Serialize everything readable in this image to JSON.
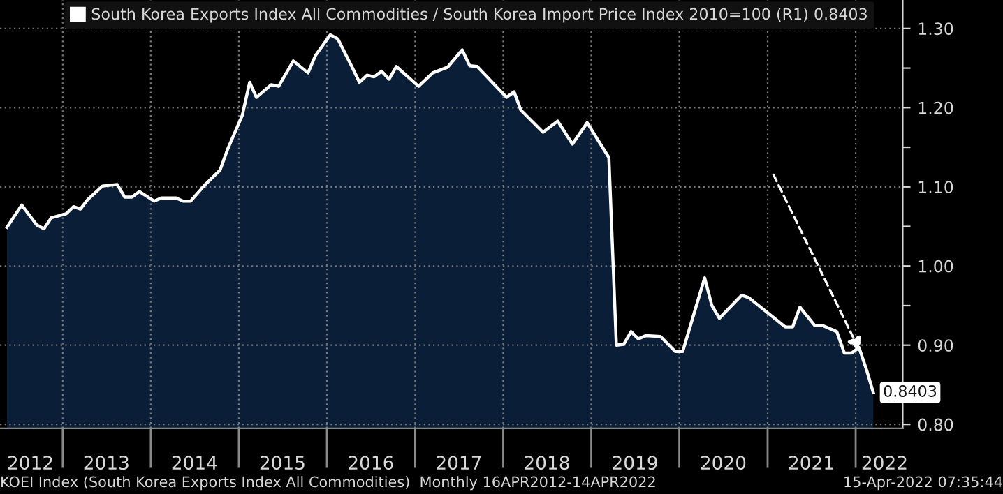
{
  "chart_data": {
    "type": "area",
    "legend": "top",
    "grid": true,
    "x": [
      "2012-05",
      "2012-07",
      "2012-09",
      "2012-10",
      "2012-11",
      "2013-01",
      "2013-02",
      "2013-03",
      "2013-04",
      "2013-06",
      "2013-08",
      "2013-09",
      "2013-10",
      "2013-11",
      "2014-01",
      "2014-02",
      "2014-04",
      "2014-05",
      "2014-06",
      "2014-08",
      "2014-10",
      "2014-11",
      "2015-01",
      "2015-02",
      "2015-03",
      "2015-05",
      "2015-06",
      "2015-08",
      "2015-10",
      "2015-11",
      "2016-01",
      "2016-02",
      "2016-04",
      "2016-05",
      "2016-06",
      "2016-07",
      "2016-08",
      "2016-09",
      "2016-10",
      "2017-01",
      "2017-03",
      "2017-05",
      "2017-07",
      "2017-08",
      "2017-09",
      "2018-01",
      "2018-02",
      "2018-03",
      "2018-06",
      "2018-08",
      "2018-10",
      "2018-12",
      "2019-03",
      "2019-04",
      "2019-05",
      "2019-06",
      "2019-07",
      "2019-08",
      "2019-10",
      "2019-12",
      "2020-01",
      "2020-04",
      "2020-05",
      "2020-06",
      "2020-09",
      "2020-10",
      "2021-03",
      "2021-04",
      "2021-05",
      "2021-07",
      "2021-08",
      "2021-10",
      "2021-11",
      "2021-12",
      "2022-01",
      "2022-02",
      "2022-03"
    ],
    "series": [
      {
        "name": "South Korea Exports Index All Commodities / South Korea Import Price Index 2010=100 (R1) 0.8403",
        "color": "#ffffff",
        "values": [
          1.049,
          1.077,
          1.052,
          1.047,
          1.061,
          1.066,
          1.075,
          1.072,
          1.084,
          1.101,
          1.103,
          1.087,
          1.087,
          1.094,
          1.082,
          1.086,
          1.086,
          1.082,
          1.082,
          1.103,
          1.121,
          1.147,
          1.19,
          1.232,
          1.213,
          1.229,
          1.227,
          1.259,
          1.244,
          1.266,
          1.292,
          1.287,
          1.251,
          1.232,
          1.241,
          1.239,
          1.246,
          1.236,
          1.252,
          1.227,
          1.244,
          1.251,
          1.273,
          1.253,
          1.252,
          1.213,
          1.22,
          1.197,
          1.169,
          1.183,
          1.154,
          1.181,
          1.137,
          0.9,
          0.901,
          0.917,
          0.908,
          0.912,
          0.911,
          0.892,
          0.892,
          0.985,
          0.95,
          0.934,
          0.963,
          0.96,
          0.923,
          0.923,
          0.948,
          0.925,
          0.925,
          0.917,
          0.89,
          0.89,
          0.897,
          0.869,
          0.8403
        ],
        "value_labels": [
          null,
          null,
          null,
          null,
          null,
          null,
          null,
          null,
          null,
          null,
          null,
          null,
          null,
          null,
          null,
          null,
          null,
          null,
          null,
          null,
          null,
          null,
          null,
          null,
          null,
          null,
          null,
          null,
          null,
          null,
          null,
          null,
          null,
          null,
          null,
          null,
          null,
          null,
          null,
          null,
          null,
          null,
          null,
          null,
          null,
          null,
          null,
          null,
          null,
          null,
          null,
          null,
          null,
          null,
          null,
          null,
          null,
          null,
          null,
          null,
          null,
          null,
          null,
          null,
          null,
          null,
          null,
          null,
          null,
          null,
          null,
          null,
          null,
          null,
          null,
          null,
          "0.8403"
        ]
      }
    ],
    "xlim": [
      "2012-04-16",
      "2022-07-15"
    ],
    "xticks": [
      {
        "value": "2012-08-20",
        "label": "2012"
      },
      {
        "value": "2013-01-01",
        "label": null
      },
      {
        "value": "2013-07-01",
        "label": "2013"
      },
      {
        "value": "2014-01-01",
        "label": null
      },
      {
        "value": "2014-07-01",
        "label": "2014"
      },
      {
        "value": "2015-01-01",
        "label": null
      },
      {
        "value": "2015-07-01",
        "label": "2015"
      },
      {
        "value": "2016-01-01",
        "label": null
      },
      {
        "value": "2016-07-01",
        "label": "2016"
      },
      {
        "value": "2017-01-01",
        "label": null
      },
      {
        "value": "2017-07-01",
        "label": "2017"
      },
      {
        "value": "2018-01-01",
        "label": null
      },
      {
        "value": "2018-07-01",
        "label": "2018"
      },
      {
        "value": "2019-01-01",
        "label": null
      },
      {
        "value": "2019-07-01",
        "label": "2019"
      },
      {
        "value": "2020-01-01",
        "label": null
      },
      {
        "value": "2020-07-01",
        "label": "2020"
      },
      {
        "value": "2021-01-01",
        "label": null
      },
      {
        "value": "2021-07-01",
        "label": "2021"
      },
      {
        "value": "2022-01-01",
        "label": null
      },
      {
        "value": "2022-05-01",
        "label": "2022"
      }
    ],
    "ylim": [
      0.795,
      1.336
    ],
    "yticks": [
      {
        "value": 0.8,
        "label": "0.80"
      },
      {
        "value": 0.85,
        "label": null
      },
      {
        "value": 0.9,
        "label": "0.90"
      },
      {
        "value": 0.95,
        "label": null
      },
      {
        "value": 1.0,
        "label": "1.00"
      },
      {
        "value": 1.05,
        "label": null
      },
      {
        "value": 1.1,
        "label": "1.10"
      },
      {
        "value": 1.15,
        "label": null
      },
      {
        "value": 1.2,
        "label": "1.20"
      },
      {
        "value": 1.25,
        "label": null
      },
      {
        "value": 1.3,
        "label": "1.30"
      }
    ],
    "annotations": [
      "KOEI Index (South Korea Exports Index All Commodities)  Monthly 16APR2012-14APR2022",
      "15-Apr-2022 07:35:44"
    ]
  }
}
